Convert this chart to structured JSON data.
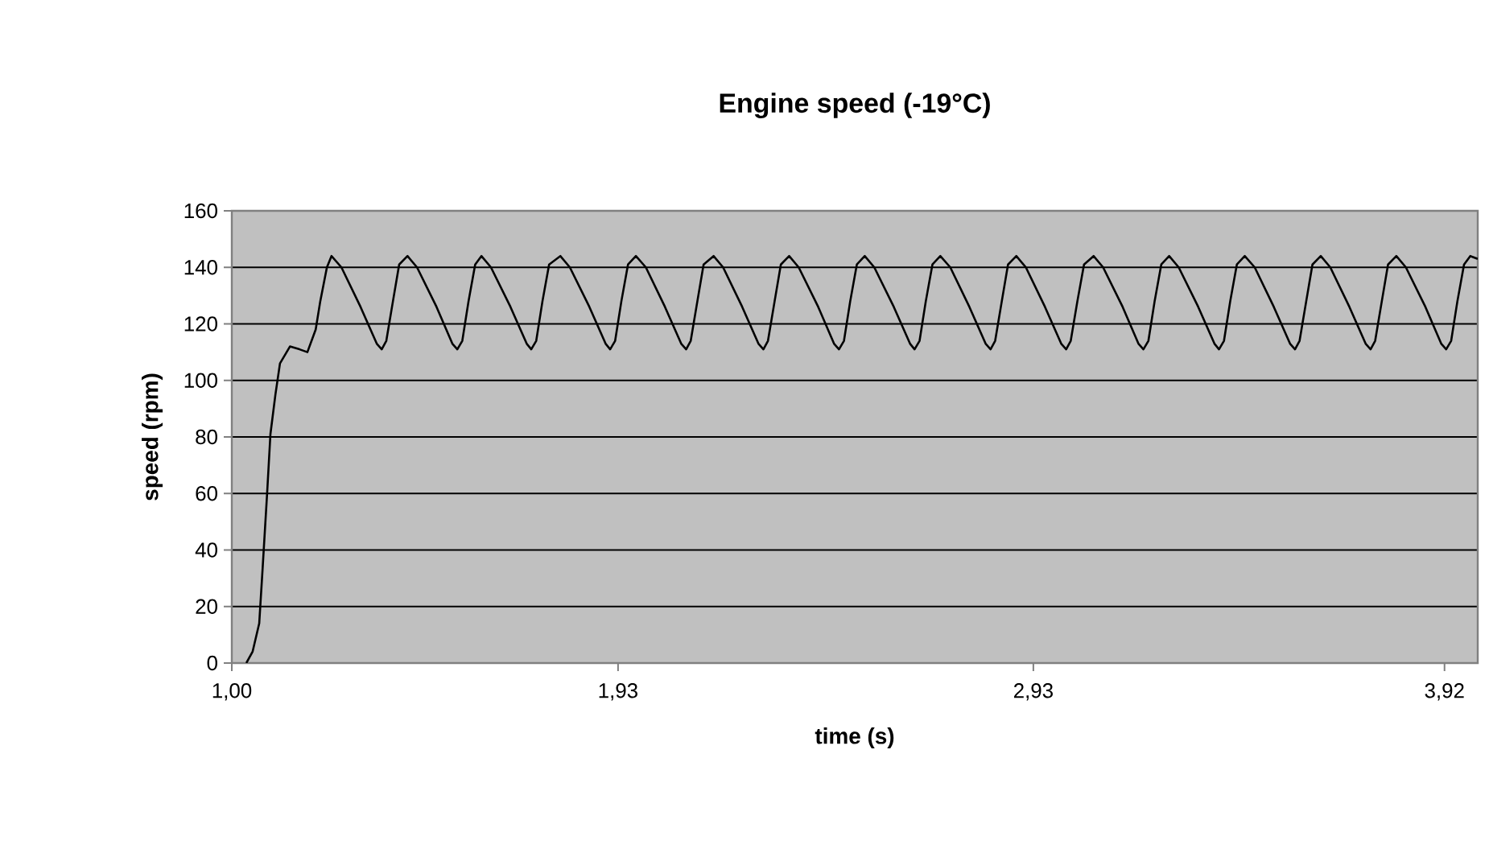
{
  "chart_data": {
    "type": "line",
    "title": "Engine speed (-19°C)",
    "xlabel": "time (s)",
    "ylabel": "speed (rpm)",
    "xlim": [
      1.0,
      4.0
    ],
    "xticks": [
      {
        "value": 1.0,
        "label": "1,00"
      },
      {
        "value": 1.93,
        "label": "1,93"
      },
      {
        "value": 2.93,
        "label": "2,93"
      },
      {
        "value": 3.92,
        "label": "3,92"
      }
    ],
    "ylim": [
      0,
      160
    ],
    "yticks": [
      0,
      20,
      40,
      60,
      80,
      100,
      120,
      140,
      160
    ],
    "grid": "y",
    "marker": "none",
    "line_style": "solid",
    "series": [
      {
        "color": "#000000",
        "x": [
          1.035,
          1.05,
          1.066,
          1.074,
          1.085,
          1.093,
          1.105,
          1.116,
          1.14,
          1.163,
          1.182,
          1.202,
          1.213,
          1.229,
          1.24,
          1.264,
          1.31,
          1.349,
          1.361,
          1.372,
          1.388,
          1.403,
          1.423,
          1.446,
          1.493,
          1.531,
          1.543,
          1.555,
          1.57,
          1.586,
          1.601,
          1.624,
          1.671,
          1.71,
          1.721,
          1.733,
          1.748,
          1.764,
          1.791,
          1.814,
          1.861,
          1.9,
          1.911,
          1.923,
          1.938,
          1.954,
          1.973,
          1.997,
          2.043,
          2.082,
          2.094,
          2.105,
          2.121,
          2.136,
          2.16,
          2.183,
          2.229,
          2.268,
          2.28,
          2.291,
          2.307,
          2.322,
          2.342,
          2.365,
          2.412,
          2.45,
          2.462,
          2.474,
          2.489,
          2.505,
          2.524,
          2.547,
          2.594,
          2.633,
          2.644,
          2.656,
          2.671,
          2.687,
          2.706,
          2.73,
          2.776,
          2.815,
          2.827,
          2.838,
          2.854,
          2.869,
          2.889,
          2.912,
          2.958,
          2.997,
          3.009,
          3.02,
          3.036,
          3.052,
          3.075,
          3.098,
          3.145,
          3.183,
          3.195,
          3.207,
          3.222,
          3.238,
          3.257,
          3.28,
          3.327,
          3.366,
          3.377,
          3.389,
          3.404,
          3.42,
          3.439,
          3.463,
          3.509,
          3.548,
          3.56,
          3.571,
          3.587,
          3.602,
          3.622,
          3.645,
          3.691,
          3.73,
          3.742,
          3.753,
          3.769,
          3.784,
          3.804,
          3.827,
          3.874,
          3.912,
          3.924,
          3.936,
          3.951,
          3.967,
          3.982,
          4.0
        ],
        "values": [
          0,
          4,
          14,
          33,
          60,
          81,
          95,
          106,
          112,
          111,
          110,
          118,
          128,
          140,
          144,
          140,
          126,
          113,
          111,
          114,
          128,
          141,
          144,
          140,
          126,
          113,
          111,
          114,
          128,
          141,
          144,
          140,
          126,
          113,
          111,
          114,
          128,
          141,
          144,
          140,
          126,
          113,
          111,
          114,
          128,
          141,
          144,
          140,
          126,
          113,
          111,
          114,
          128,
          141,
          144,
          140,
          126,
          113,
          111,
          114,
          128,
          141,
          144,
          140,
          126,
          113,
          111,
          114,
          128,
          141,
          144,
          140,
          126,
          113,
          111,
          114,
          128,
          141,
          144,
          140,
          126,
          113,
          111,
          114,
          128,
          141,
          144,
          140,
          126,
          113,
          111,
          114,
          128,
          141,
          144,
          140,
          126,
          113,
          111,
          114,
          128,
          141,
          144,
          140,
          126,
          113,
          111,
          114,
          128,
          141,
          144,
          140,
          126,
          113,
          111,
          114,
          128,
          141,
          144,
          140,
          126,
          113,
          111,
          114,
          128,
          141,
          144,
          140,
          126,
          113,
          111,
          114,
          128,
          141,
          144,
          143
        ]
      }
    ]
  }
}
